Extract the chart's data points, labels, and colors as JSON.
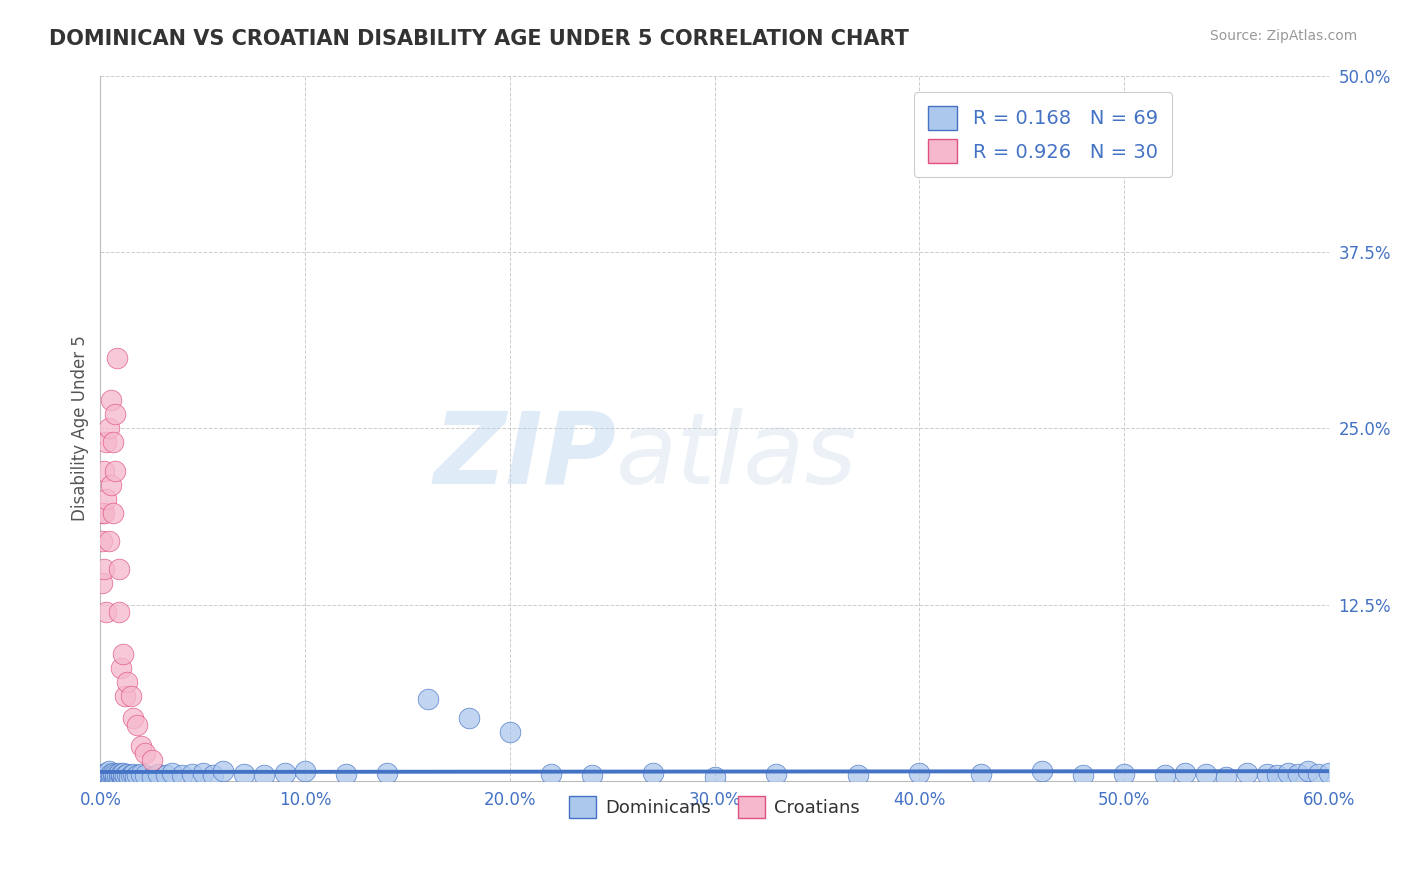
{
  "title": "DOMINICAN VS CROATIAN DISABILITY AGE UNDER 5 CORRELATION CHART",
  "source_text": "Source: ZipAtlas.com",
  "ylabel": "Disability Age Under 5",
  "xlim": [
    0.0,
    0.6
  ],
  "ylim": [
    0.0,
    0.5
  ],
  "dominican_color": "#adc8ed",
  "dominican_edge_color": "#4472c4",
  "croatian_color": "#f5b8cc",
  "croatian_edge_color": "#e05080",
  "dominican_line_color": "#4472c4",
  "croatian_line_color": "#e05080",
  "r_dominican": 0.168,
  "n_dominican": 69,
  "r_croatian": 0.926,
  "n_croatian": 30,
  "legend_label_1": "Dominicans",
  "legend_label_2": "Croatians",
  "watermark_zip": "ZIP",
  "watermark_atlas": "atlas",
  "background_color": "#ffffff",
  "title_color": "#333333",
  "axis_label_color": "#555555",
  "tick_color": "#4472c4",
  "right_tick_color": "#4472c4",
  "ytick_labels": [
    "",
    "12.5%",
    "25.0%",
    "37.5%",
    "50.0%"
  ],
  "ytick_values": [
    0.0,
    0.125,
    0.25,
    0.375,
    0.5
  ],
  "xtick_values": [
    0.0,
    0.1,
    0.2,
    0.3,
    0.4,
    0.5,
    0.6
  ],
  "xtick_labels": [
    "0.0%",
    "",
    "",
    "",
    "",
    "",
    "60.0%"
  ],
  "dom_x": [
    0.001,
    0.002,
    0.003,
    0.003,
    0.004,
    0.004,
    0.005,
    0.005,
    0.006,
    0.006,
    0.007,
    0.007,
    0.008,
    0.009,
    0.009,
    0.01,
    0.01,
    0.011,
    0.011,
    0.012,
    0.013,
    0.014,
    0.015,
    0.016,
    0.017,
    0.018,
    0.02,
    0.022,
    0.025,
    0.028,
    0.032,
    0.035,
    0.04,
    0.045,
    0.05,
    0.055,
    0.06,
    0.07,
    0.08,
    0.09,
    0.1,
    0.12,
    0.14,
    0.16,
    0.18,
    0.2,
    0.22,
    0.24,
    0.27,
    0.3,
    0.33,
    0.37,
    0.4,
    0.43,
    0.46,
    0.48,
    0.5,
    0.52,
    0.53,
    0.54,
    0.55,
    0.56,
    0.57,
    0.575,
    0.58,
    0.585,
    0.59,
    0.595,
    0.6
  ],
  "dom_y": [
    0.004,
    0.005,
    0.003,
    0.006,
    0.004,
    0.007,
    0.003,
    0.005,
    0.004,
    0.006,
    0.003,
    0.005,
    0.004,
    0.003,
    0.006,
    0.004,
    0.005,
    0.003,
    0.006,
    0.004,
    0.005,
    0.003,
    0.004,
    0.005,
    0.003,
    0.004,
    0.005,
    0.004,
    0.003,
    0.005,
    0.004,
    0.006,
    0.004,
    0.005,
    0.006,
    0.004,
    0.007,
    0.005,
    0.004,
    0.006,
    0.007,
    0.005,
    0.006,
    0.058,
    0.045,
    0.035,
    0.005,
    0.004,
    0.006,
    0.003,
    0.005,
    0.004,
    0.006,
    0.005,
    0.007,
    0.004,
    0.005,
    0.004,
    0.006,
    0.005,
    0.003,
    0.006,
    0.005,
    0.004,
    0.006,
    0.005,
    0.007,
    0.005,
    0.006
  ],
  "cro_x": [
    0.001,
    0.001,
    0.001,
    0.002,
    0.002,
    0.002,
    0.003,
    0.003,
    0.003,
    0.004,
    0.004,
    0.005,
    0.005,
    0.006,
    0.006,
    0.007,
    0.007,
    0.008,
    0.009,
    0.009,
    0.01,
    0.011,
    0.012,
    0.013,
    0.015,
    0.016,
    0.018,
    0.02,
    0.022,
    0.025
  ],
  "cro_y": [
    0.17,
    0.19,
    0.14,
    0.19,
    0.22,
    0.15,
    0.24,
    0.2,
    0.12,
    0.25,
    0.17,
    0.27,
    0.21,
    0.24,
    0.19,
    0.26,
    0.22,
    0.3,
    0.12,
    0.15,
    0.08,
    0.09,
    0.06,
    0.07,
    0.06,
    0.045,
    0.04,
    0.025,
    0.02,
    0.015
  ]
}
